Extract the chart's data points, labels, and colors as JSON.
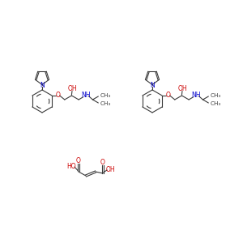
{
  "bg_color": "#ffffff",
  "bond_color": "#3a3a3a",
  "N_color": "#0000cc",
  "O_color": "#cc0000",
  "figsize": [
    3.0,
    3.0
  ],
  "dpi": 100,
  "bond_lw": 0.8,
  "font_size": 5.5,
  "xlim": [
    0,
    300
  ],
  "ylim": [
    0,
    300
  ]
}
